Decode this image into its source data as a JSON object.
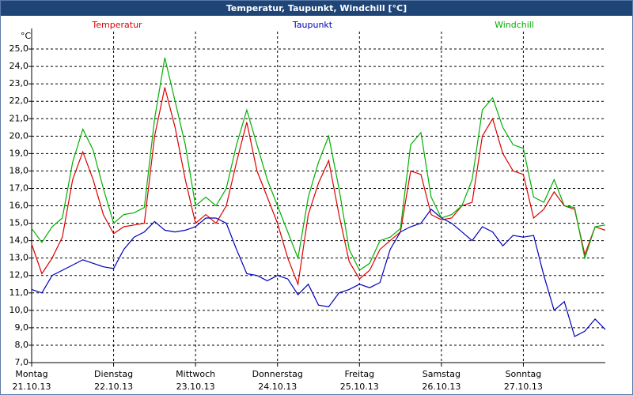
{
  "chart_data": {
    "type": "line",
    "title": "Temperatur, Taupunkt, Windchill [°C]",
    "y_unit": "°C",
    "x": [
      0,
      3,
      6,
      9,
      12,
      15,
      18,
      21,
      24,
      27,
      30,
      33,
      36,
      39,
      42,
      45,
      48,
      51,
      54,
      57,
      60,
      63,
      66,
      69,
      72,
      75,
      78,
      81,
      84,
      87,
      90,
      93,
      96,
      99,
      102,
      105,
      108,
      111,
      114,
      117,
      120,
      123,
      126,
      129,
      132,
      135,
      138,
      141,
      144,
      147,
      150,
      153,
      156,
      159,
      162,
      165,
      168
    ],
    "xlim": [
      0,
      168
    ],
    "xticks": [
      {
        "value": 0,
        "label": "Montag"
      },
      {
        "value": 24,
        "label": "Dienstag"
      },
      {
        "value": 48,
        "label": "Mittwoch"
      },
      {
        "value": 72,
        "label": "Donnerstag"
      },
      {
        "value": 96,
        "label": "Freitag"
      },
      {
        "value": 120,
        "label": "Samstag"
      },
      {
        "value": 144,
        "label": "Sonntag"
      }
    ],
    "xtick_dates": [
      "21.10.13",
      "22.10.13",
      "23.10.13",
      "24.10.13",
      "25.10.13",
      "26.10.13",
      "27.10.13"
    ],
    "ylim": [
      7,
      26
    ],
    "yticks": [
      {
        "value": 7,
        "label": "7,0"
      },
      {
        "value": 8,
        "label": "8,0"
      },
      {
        "value": 9,
        "label": "9,0"
      },
      {
        "value": 10,
        "label": "10,0"
      },
      {
        "value": 11,
        "label": "11,0"
      },
      {
        "value": 12,
        "label": "12,0"
      },
      {
        "value": 13,
        "label": "13,0"
      },
      {
        "value": 14,
        "label": "14,0"
      },
      {
        "value": 15,
        "label": "15,0"
      },
      {
        "value": 16,
        "label": "16,0"
      },
      {
        "value": 17,
        "label": "17,0"
      },
      {
        "value": 18,
        "label": "18,0"
      },
      {
        "value": 19,
        "label": "19,0"
      },
      {
        "value": 20,
        "label": "20,0"
      },
      {
        "value": 21,
        "label": "21,0"
      },
      {
        "value": 22,
        "label": "22,0"
      },
      {
        "value": 23,
        "label": "23,0"
      },
      {
        "value": 24,
        "label": "24,0"
      },
      {
        "value": 25,
        "label": "25,0"
      }
    ],
    "grid": true,
    "series": [
      {
        "name": "Temperatur",
        "color": "#dd0000",
        "values": [
          13.8,
          12.1,
          13.0,
          14.2,
          17.5,
          19.1,
          17.5,
          15.5,
          14.4,
          14.8,
          14.9,
          15.0,
          20.0,
          22.8,
          20.5,
          17.5,
          15.0,
          15.5,
          15.0,
          16.0,
          18.5,
          20.8,
          18.0,
          16.5,
          15.0,
          13.0,
          11.5,
          15.5,
          17.3,
          18.6,
          15.5,
          12.8,
          11.8,
          12.3,
          13.5,
          14.0,
          14.5,
          18.0,
          17.8,
          15.5,
          15.2,
          15.3,
          16.0,
          16.2,
          20.0,
          21.0,
          19.0,
          18.0,
          17.8,
          15.3,
          15.8,
          16.8,
          16.0,
          15.8,
          13.2,
          14.8,
          14.6
        ]
      },
      {
        "name": "Taupunkt",
        "color": "#0000bb",
        "values": [
          11.2,
          11.0,
          12.0,
          12.3,
          12.6,
          12.9,
          12.7,
          12.5,
          12.4,
          13.5,
          14.2,
          14.5,
          15.1,
          14.6,
          14.5,
          14.6,
          14.8,
          15.3,
          15.3,
          15.0,
          13.5,
          12.1,
          12.0,
          11.7,
          12.0,
          11.8,
          10.9,
          11.5,
          10.3,
          10.2,
          11.0,
          11.2,
          11.5,
          11.3,
          11.6,
          13.5,
          14.5,
          14.8,
          15.0,
          15.8,
          15.3,
          15.0,
          14.5,
          14.0,
          14.8,
          14.5,
          13.7,
          14.3,
          14.2,
          14.3,
          12.0,
          10.0,
          10.5,
          8.5,
          8.8,
          9.5,
          8.9
        ]
      },
      {
        "name": "Windchill",
        "color": "#00b000",
        "values": [
          14.7,
          13.9,
          14.8,
          15.3,
          18.5,
          20.4,
          19.2,
          17.0,
          15.0,
          15.5,
          15.6,
          15.9,
          21.0,
          24.5,
          22.0,
          19.5,
          16.0,
          16.5,
          16.0,
          17.0,
          19.5,
          21.5,
          19.5,
          17.5,
          16.0,
          14.5,
          13.0,
          16.5,
          18.5,
          20.0,
          17.0,
          13.5,
          12.3,
          12.7,
          14.0,
          14.2,
          14.7,
          19.5,
          20.2,
          16.5,
          15.3,
          15.5,
          16.0,
          17.5,
          21.5,
          22.2,
          20.5,
          19.5,
          19.3,
          16.5,
          16.2,
          17.5,
          16.0,
          15.9,
          13.0,
          14.8,
          14.9
        ]
      }
    ]
  }
}
